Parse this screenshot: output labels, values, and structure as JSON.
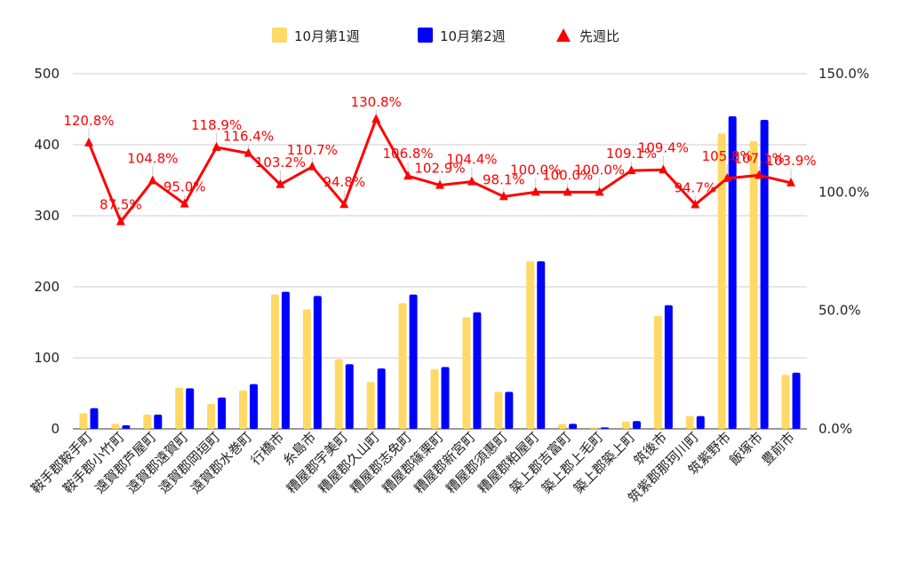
{
  "chart_data": {
    "type": "bar+line",
    "categories": [
      "鞍手郡鞍手町",
      "鞍手郡小竹町",
      "遠賀郡芦屋町",
      "遠賀郡遠賀町",
      "遠賀郡岡垣町",
      "遠賀郡水巻町",
      "行橋市",
      "糸島市",
      "糟屋郡宇美町",
      "糟屋郡久山町",
      "糟屋郡志免町",
      "糟屋郡篠栗町",
      "糟屋郡新宮町",
      "糟屋郡須惠町",
      "糟屋郡粕屋町",
      "築上郡吉富町",
      "築上郡上毛町",
      "築上郡築上町",
      "筑後市",
      "筑紫郡那珂川町",
      "筑紫野市",
      "飯塚市",
      "豊前市"
    ],
    "series": [
      {
        "name": "10月第1週",
        "color": "#FFD966",
        "axis": "left",
        "values": [
          22,
          7,
          20,
          58,
          35,
          54,
          189,
          168,
          98,
          66,
          177,
          84,
          157,
          52,
          236,
          7,
          2,
          10,
          159,
          18,
          416,
          405,
          76
        ]
      },
      {
        "name": "10月第2週",
        "color": "#0000FF",
        "axis": "left",
        "values": [
          29,
          5,
          20,
          57,
          44,
          63,
          193,
          187,
          91,
          85,
          189,
          87,
          164,
          52,
          236,
          7,
          2,
          11,
          174,
          18,
          440,
          435,
          79
        ]
      },
      {
        "name": "先週比",
        "color": "#FF0000",
        "axis": "right",
        "marker": "triangle",
        "values": [
          120.8,
          87.5,
          104.8,
          95.0,
          118.9,
          116.4,
          103.2,
          110.7,
          94.8,
          130.8,
          106.8,
          102.9,
          104.4,
          98.1,
          100.0,
          100.0,
          100.0,
          109.1,
          109.4,
          94.7,
          105.8,
          107.1,
          103.9
        ],
        "labels": [
          "120.8%",
          "87.5%",
          "104.8%",
          "95.0%",
          "118.9%",
          "116.4%",
          "103.2%",
          "110.7%",
          "94.8%",
          "130.8%",
          "106.8%",
          "102.9%",
          "104.4%",
          "98.1%",
          "100.0%",
          "100.0%",
          "100.0%",
          "109.1%",
          "109.4%",
          "94.7%",
          "105.8%",
          "107.1%",
          "103.9%"
        ]
      }
    ],
    "left_axis": {
      "min": 0,
      "max": 500,
      "ticks": [
        0,
        100,
        200,
        300,
        400,
        500
      ]
    },
    "right_axis": {
      "min": 0,
      "max": 150,
      "ticks": [
        "0.0%",
        "50.0%",
        "100.0%",
        "150.0%"
      ]
    },
    "grid": true,
    "legend_position": "top-center"
  }
}
